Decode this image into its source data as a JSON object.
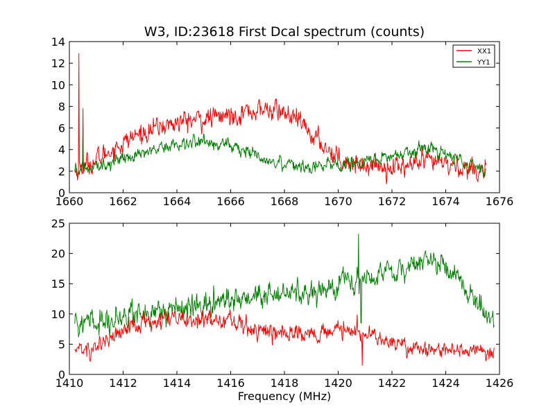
{
  "chart_data": [
    {
      "type": "line",
      "title": "W3, ID:23618 First Dcal spectrum (counts)",
      "xlabel": "",
      "ylabel": "",
      "xlim": [
        1660,
        1676
      ],
      "ylim": [
        0,
        14
      ],
      "xticks": [
        "1660",
        "1662",
        "1664",
        "1666",
        "1668",
        "1670",
        "1672",
        "1674",
        "1676"
      ],
      "yticks": [
        "0",
        "2",
        "4",
        "6",
        "8",
        "10",
        "12",
        "14"
      ],
      "legend_position": "top-right",
      "series": [
        {
          "name": "XX1",
          "color": "#ff0000",
          "x": [
            1660.2,
            1660.4,
            1661.0,
            1661.5,
            1662.0,
            1662.5,
            1663.0,
            1663.5,
            1664.0,
            1664.5,
            1665.0,
            1665.5,
            1666.0,
            1666.5,
            1667.0,
            1667.5,
            1668.0,
            1668.5,
            1669.0,
            1669.5,
            1670.0,
            1670.5,
            1671.0,
            1671.5,
            1672.0,
            1672.5,
            1673.0,
            1673.5,
            1674.0,
            1674.5,
            1675.0,
            1675.5
          ],
          "values": [
            2.0,
            2.3,
            3.0,
            3.9,
            4.6,
            5.3,
            5.8,
            6.2,
            6.5,
            6.7,
            6.8,
            7.0,
            7.2,
            7.5,
            7.6,
            7.7,
            7.4,
            6.6,
            5.4,
            4.3,
            3.3,
            2.8,
            2.6,
            2.5,
            2.4,
            2.5,
            2.7,
            2.8,
            2.6,
            2.4,
            2.2,
            2.1
          ],
          "noise": 0.55,
          "spikes": [
            {
              "x": 1660.35,
              "y": 12.9
            },
            {
              "x": 1660.5,
              "y": 7.8
            }
          ]
        },
        {
          "name": "YY1",
          "color": "#008000",
          "x": [
            1660.2,
            1660.5,
            1661.0,
            1661.5,
            1662.0,
            1662.5,
            1663.0,
            1663.5,
            1664.0,
            1664.5,
            1665.0,
            1665.5,
            1666.0,
            1666.5,
            1667.0,
            1667.5,
            1668.0,
            1668.5,
            1669.0,
            1669.5,
            1670.0,
            1670.5,
            1671.0,
            1671.5,
            1672.0,
            1672.5,
            1673.0,
            1673.5,
            1674.0,
            1674.5,
            1675.0,
            1675.5
          ],
          "values": [
            2.0,
            2.2,
            2.4,
            2.8,
            3.2,
            3.6,
            4.0,
            4.3,
            4.5,
            4.7,
            4.7,
            4.6,
            4.3,
            3.9,
            3.4,
            3.0,
            2.8,
            2.6,
            2.5,
            2.5,
            2.6,
            2.7,
            2.8,
            3.0,
            3.4,
            3.8,
            4.1,
            4.0,
            3.6,
            3.0,
            2.5,
            2.2
          ],
          "noise": 0.35,
          "spikes": [
            {
              "x": 1660.5,
              "y": 6.1
            }
          ]
        }
      ]
    },
    {
      "type": "line",
      "title": "",
      "xlabel": "Frequency (MHz)",
      "ylabel": "",
      "xlim": [
        1410,
        1426
      ],
      "ylim": [
        0,
        25
      ],
      "xticks": [
        "1410",
        "1412",
        "1414",
        "1416",
        "1418",
        "1420",
        "1422",
        "1424",
        "1426"
      ],
      "yticks": [
        "0",
        "5",
        "10",
        "15",
        "20",
        "25"
      ],
      "series": [
        {
          "color": "#008000",
          "x": [
            1410.2,
            1410.5,
            1411.0,
            1411.5,
            1412.0,
            1412.5,
            1413.0,
            1413.5,
            1414.0,
            1414.5,
            1415.0,
            1415.5,
            1416.0,
            1416.5,
            1417.0,
            1417.5,
            1418.0,
            1418.5,
            1419.0,
            1419.5,
            1420.0,
            1420.5,
            1421.0,
            1421.5,
            1422.0,
            1422.5,
            1423.0,
            1423.5,
            1424.0,
            1424.5,
            1425.0,
            1425.5,
            1425.8
          ],
          "values": [
            8.5,
            8.3,
            8.6,
            9.2,
            9.8,
            10.0,
            10.2,
            10.4,
            10.6,
            11.0,
            11.4,
            11.8,
            12.2,
            12.5,
            12.8,
            13.0,
            13.3,
            13.5,
            13.9,
            14.2,
            15.0,
            15.9,
            16.0,
            16.6,
            17.0,
            17.8,
            18.3,
            18.6,
            17.8,
            15.5,
            12.5,
            10.5,
            9.0
          ],
          "noise": 1.1,
          "spikes": [
            {
              "x": 1420.75,
              "y": 23.2
            },
            {
              "x": 1420.85,
              "y": 8.5
            }
          ]
        },
        {
          "color": "#ff0000",
          "x": [
            1410.2,
            1410.5,
            1411.0,
            1411.5,
            1412.0,
            1412.5,
            1413.0,
            1413.5,
            1414.0,
            1414.5,
            1415.0,
            1415.5,
            1416.0,
            1416.5,
            1417.0,
            1417.5,
            1418.0,
            1418.5,
            1419.0,
            1419.5,
            1420.0,
            1420.5,
            1421.0,
            1421.5,
            1422.0,
            1422.5,
            1423.0,
            1423.5,
            1424.0,
            1424.5,
            1425.0,
            1425.5,
            1425.8
          ],
          "values": [
            4.0,
            4.0,
            4.8,
            5.8,
            7.0,
            8.0,
            8.6,
            8.8,
            9.0,
            9.1,
            9.0,
            8.9,
            8.6,
            7.8,
            7.2,
            7.0,
            6.8,
            6.8,
            6.8,
            7.0,
            7.0,
            7.2,
            6.4,
            5.8,
            5.2,
            4.7,
            4.4,
            4.2,
            4.1,
            4.0,
            4.0,
            4.0,
            4.0
          ],
          "noise": 0.85,
          "spikes": [
            {
              "x": 1420.9,
              "y": 1.5
            },
            {
              "x": 1420.7,
              "y": 9.8
            }
          ]
        }
      ]
    }
  ]
}
